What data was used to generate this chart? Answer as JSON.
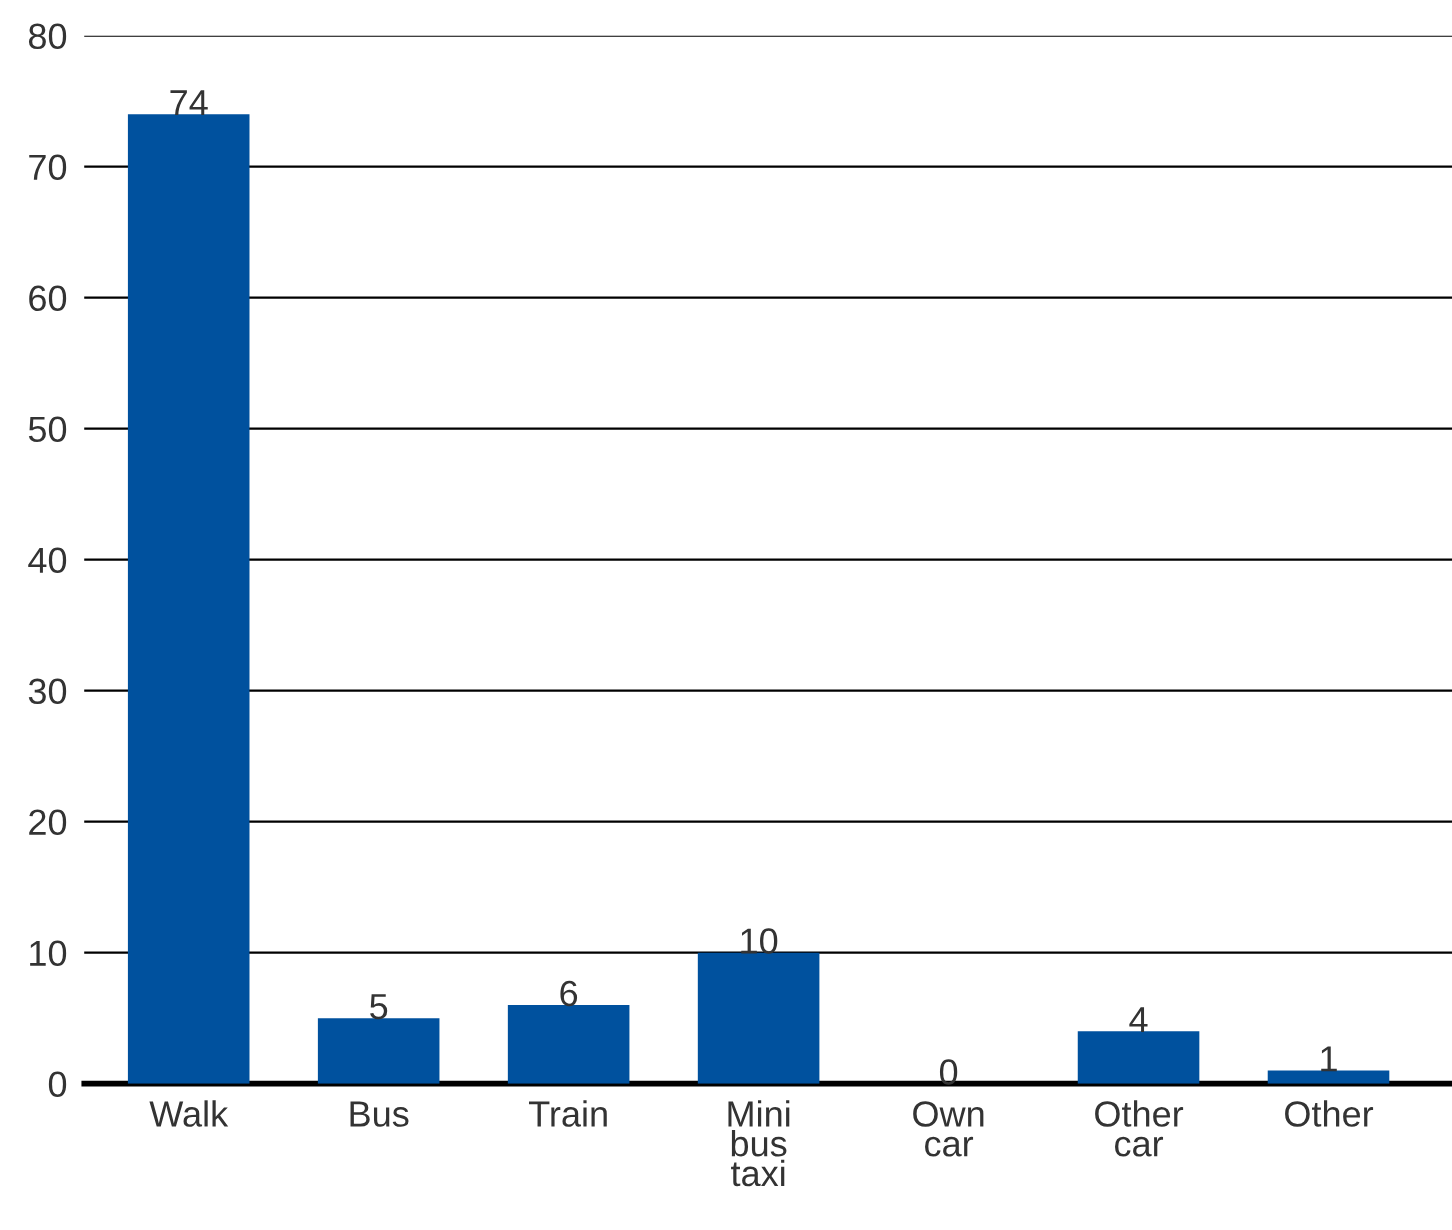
{
  "chart_data": {
    "type": "bar",
    "categories": [
      "Walk",
      "Bus",
      "Train",
      "Mini\nbus\ntaxi",
      "Own\ncar",
      "Other\ncar",
      "Other"
    ],
    "values": [
      74,
      5,
      6,
      10,
      0,
      4,
      1
    ],
    "color": "#00519e",
    "ylim": [
      0,
      80
    ],
    "yticks": [
      0,
      10,
      20,
      30,
      40,
      50,
      60,
      70,
      80
    ],
    "grid": "y",
    "data_labels": true
  }
}
